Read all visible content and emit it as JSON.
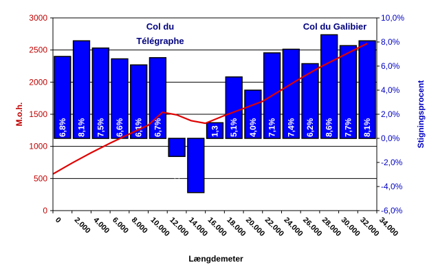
{
  "chart_data": {
    "type": "bar",
    "xlabel": "Længdemeter",
    "ylabel_left": "M.o.h.",
    "ylabel_right": "Stigningsprocent",
    "left_axis": {
      "ylim": [
        0,
        3000
      ],
      "ticks": [
        0,
        500,
        1000,
        1500,
        2000,
        2500,
        3000
      ],
      "tick_labels": [
        "0",
        "500",
        "1000",
        "1500",
        "2000",
        "2500",
        "3000"
      ]
    },
    "right_axis": {
      "ylim": [
        -6,
        10
      ],
      "ticks": [
        -6,
        -4,
        -2,
        0,
        2,
        4,
        6,
        8,
        10
      ],
      "tick_labels": [
        "-6,0%",
        "-4,0%",
        "-2,0%",
        "0,0%",
        "2,0%",
        "4,0%",
        "6,0%",
        "8,0%",
        "10,0%"
      ]
    },
    "x_axis": {
      "xlim": [
        0,
        34000
      ],
      "ticks": [
        0,
        2000,
        4000,
        6000,
        8000,
        10000,
        12000,
        14000,
        16000,
        18000,
        20000,
        22000,
        24000,
        26000,
        28000,
        30000,
        32000,
        34000
      ],
      "tick_labels": [
        "0",
        "2.000",
        "4.000",
        "6.000",
        "8.000",
        "10.000",
        "12.000",
        "14.000",
        "16.000",
        "18.000",
        "20.000",
        "22.000",
        "24.000",
        "26.000",
        "28.000",
        "30.000",
        "32.000",
        "34.000"
      ]
    },
    "bars": {
      "axis": "right",
      "values": [
        6.8,
        8.1,
        7.5,
        6.6,
        6.1,
        6.7,
        -1.5,
        -4.5,
        1.3,
        5.1,
        4.0,
        7.1,
        7.4,
        6.2,
        8.6,
        7.7,
        8.1
      ],
      "labels": [
        "6,8%",
        "8,1%",
        "7,5%",
        "6,6%",
        "6,1%",
        "6,7%",
        "-1,5%",
        "-4,5%",
        "1,3",
        "5,1%",
        "4,0%",
        "7,1%",
        "7,4%",
        "6,2%",
        "8,6%",
        "7,7%",
        "8,1%"
      ],
      "color": "#0000ff",
      "outline": "#000000"
    },
    "line": {
      "axis": "left",
      "color": "#e00000",
      "x": [
        0,
        2000,
        4000,
        6000,
        8000,
        10000,
        11500,
        13000,
        14500,
        16000,
        18000,
        20000,
        22000,
        24000,
        26000,
        28000,
        30000,
        32000,
        33000
      ],
      "y": [
        570,
        740,
        900,
        1050,
        1190,
        1330,
        1530,
        1490,
        1400,
        1360,
        1480,
        1590,
        1700,
        1880,
        2060,
        2230,
        2380,
        2530,
        2600
      ]
    },
    "annotations": [
      {
        "lines": [
          "Col du",
          "Télégraphe"
        ]
      },
      {
        "lines": [
          "Col du Galibier"
        ]
      }
    ],
    "grid": "horizontal"
  }
}
